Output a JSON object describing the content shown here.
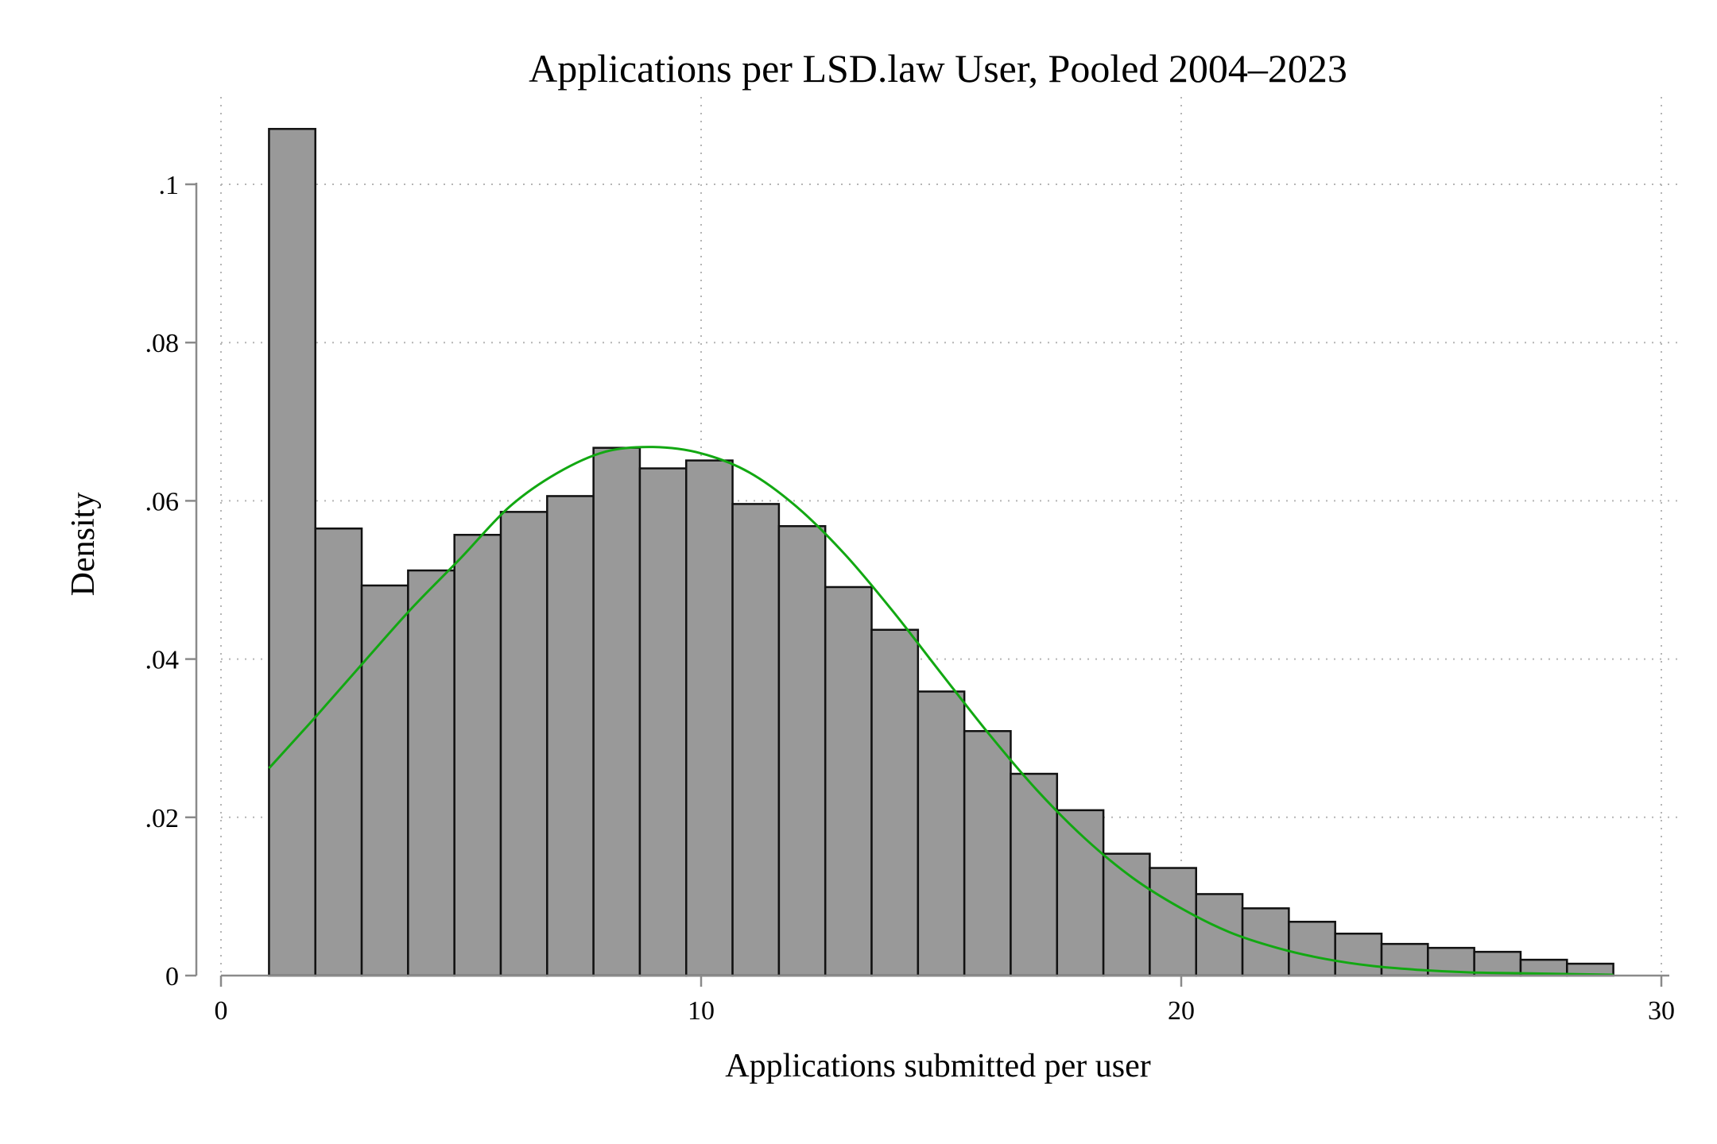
{
  "chart_data": {
    "type": "bar",
    "title": "Applications per LSD.law User, Pooled 2004–2023",
    "xlabel": "Applications submitted per user",
    "ylabel": "Density",
    "xlim": [
      0,
      30
    ],
    "ylim": [
      0,
      0.1
    ],
    "x_ticks": [
      0,
      10,
      20,
      30
    ],
    "x_tick_labels": [
      "0",
      "10",
      "20",
      "30"
    ],
    "y_ticks": [
      0,
      0.02,
      0.04,
      0.06,
      0.08,
      0.1
    ],
    "y_tick_labels": [
      "0",
      ".02",
      ".04",
      ".06",
      ".08",
      ".1"
    ],
    "grid": true,
    "bin_edges": [
      1,
      1.9655,
      2.931,
      3.8966,
      4.8621,
      5.8276,
      6.7931,
      7.7586,
      8.7241,
      9.6897,
      10.6552,
      11.6207,
      12.5862,
      13.5517,
      14.5172,
      15.4828,
      16.4483,
      17.4138,
      18.3793,
      19.3448,
      20.3103,
      21.2759,
      22.2414,
      23.2069,
      24.1724,
      25.1379,
      26.1034,
      27.069,
      28.0345,
      29
    ],
    "values": [
      0.107,
      0.0565,
      0.0493,
      0.0512,
      0.0557,
      0.0586,
      0.0606,
      0.0667,
      0.0641,
      0.0651,
      0.0596,
      0.0568,
      0.0491,
      0.0437,
      0.0359,
      0.0309,
      0.0255,
      0.0209,
      0.0154,
      0.0136,
      0.0103,
      0.0085,
      0.0068,
      0.0053,
      0.004,
      0.0035,
      0.003,
      0.002,
      0.0015
    ],
    "density_curve": {
      "x": [
        1,
        2,
        3,
        4,
        5,
        6,
        7,
        8,
        9,
        10,
        11,
        12,
        13,
        14,
        15,
        16,
        17,
        18,
        19,
        20,
        21,
        22,
        23,
        24,
        25,
        26,
        27,
        28,
        29
      ],
      "y": [
        0.0262,
        0.0329,
        0.0398,
        0.0466,
        0.0528,
        0.0592,
        0.0635,
        0.0662,
        0.0668,
        0.066,
        0.0636,
        0.0592,
        0.0532,
        0.046,
        0.0382,
        0.0305,
        0.0234,
        0.0173,
        0.0123,
        0.0085,
        0.0055,
        0.0035,
        0.0021,
        0.0012,
        0.0007,
        0.0004,
        0.0003,
        0.0002,
        0.0001
      ]
    },
    "colors": {
      "bar_fill": "#999999",
      "bar_edge": "#111111",
      "curve": "#12a812"
    }
  }
}
